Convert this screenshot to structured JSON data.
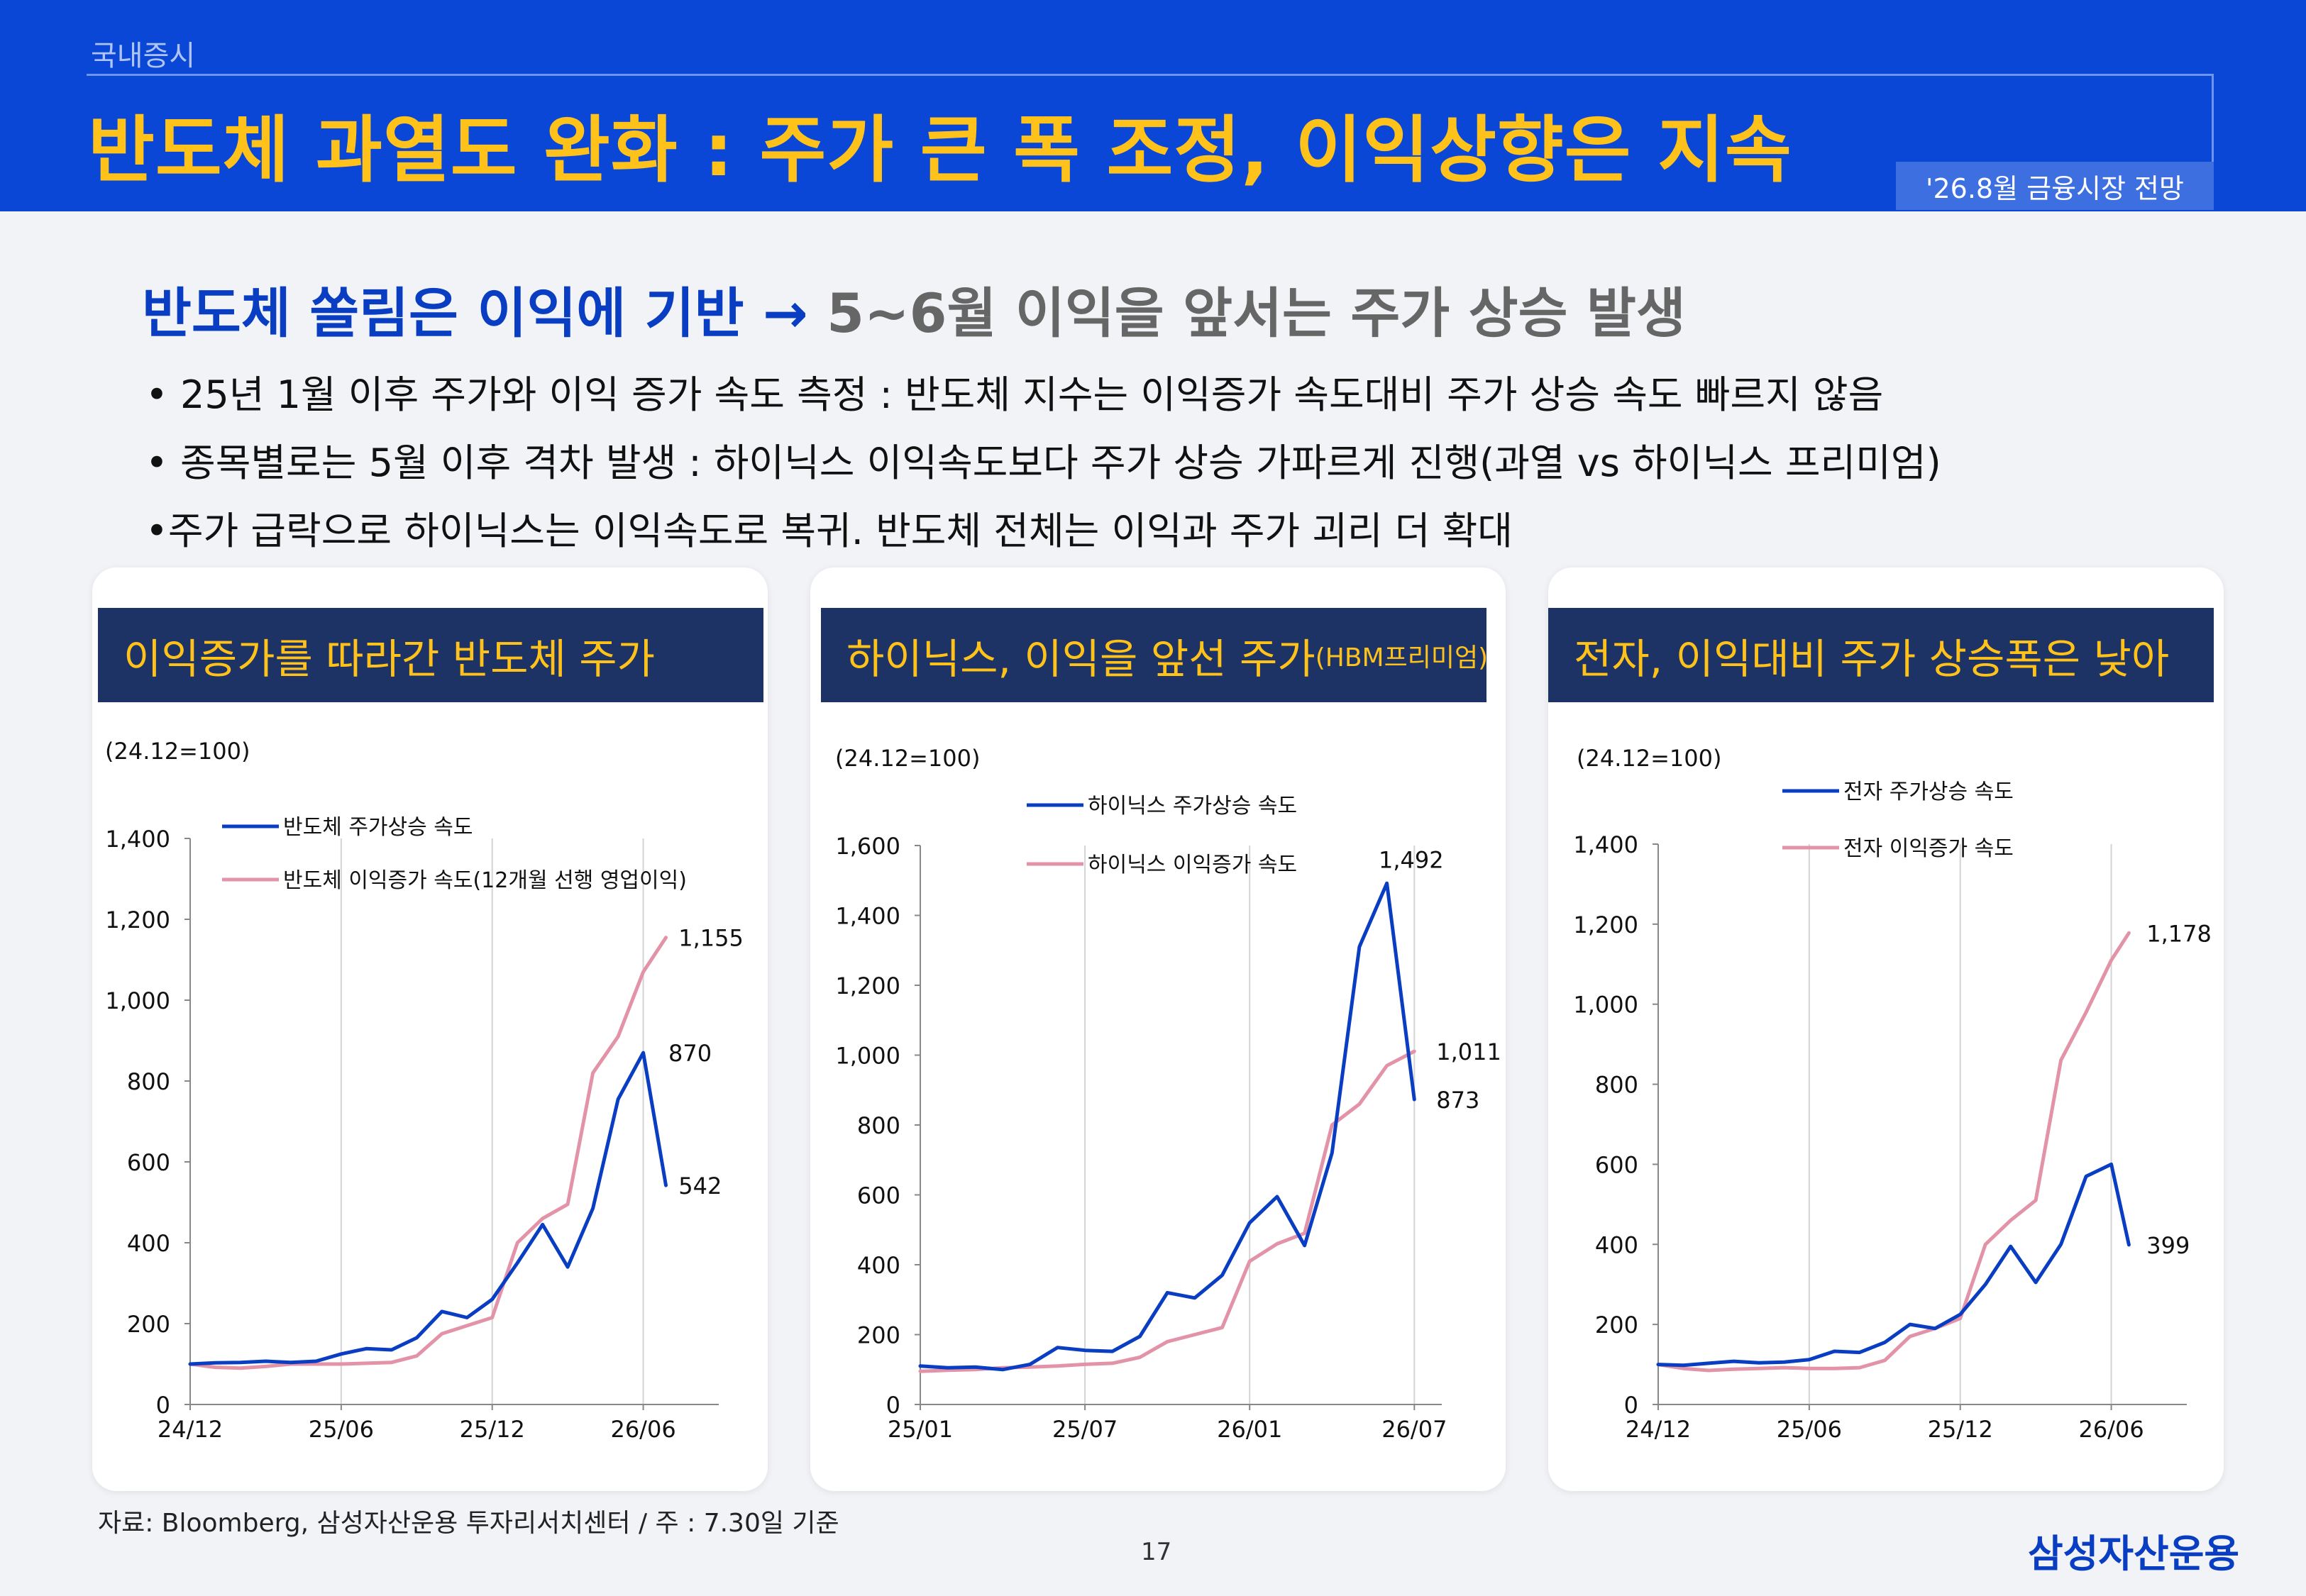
{
  "header": {
    "section": "국내증시",
    "title": "반도체 과열도 완화 : 주가 큰 폭 조정, 이익상향은 지속",
    "date_badge": "'26.8월 금융시장 전망"
  },
  "subheadline": {
    "part1": "반도체 쏠림은 이익에 기반 →",
    "part2": "5~6월 이익을 앞서는 주가 상승 발생"
  },
  "bullets": [
    "• 25년 1월 이후 주가와 이익 증가 속도 측정 : 반도체 지수는 이익증가 속도대비 주가 상승 속도 빠르지 않음",
    "• 종목별로는 5월 이후 격차 발생 : 하이닉스 이익속도보다 주가 상승 가파르게 진행(과열 vs 하이닉스 프리미엄)",
    "•주가 급락으로 하이닉스는 이익속도로 복귀. 반도체 전체는 이익과 주가 괴리 더 확대"
  ],
  "colors": {
    "blue": "#0a3ec2",
    "pink": "#e393a8",
    "navy": "#1e3365",
    "accent": "#ffc21a",
    "header": "#0a47d6"
  },
  "charts": [
    {
      "title": "이익증가를 따라간 반도체 주가",
      "title_small": ""
    },
    {
      "title": "하이닉스, 이익을 앞선 주가",
      "title_small": "(HBM프리미엄)"
    },
    {
      "title": "전자, 이익대비 주가 상승폭은 낮아",
      "title_small": ""
    }
  ],
  "chart_data": [
    {
      "type": "line",
      "title": "이익증가를 따라간 반도체 주가",
      "unit_note": "(24.12=100)",
      "ylim": [
        0,
        1400
      ],
      "yticks": [
        0,
        200,
        400,
        600,
        800,
        1000,
        1200,
        1400
      ],
      "x_range": [
        0,
        21
      ],
      "xticks": [
        {
          "pos": 0,
          "label": "24/12"
        },
        {
          "pos": 6,
          "label": "25/06"
        },
        {
          "pos": 12,
          "label": "25/12"
        },
        {
          "pos": 18,
          "label": "26/06"
        }
      ],
      "gridlines_x": [
        6,
        12,
        18
      ],
      "legend_position": "top-left",
      "series": [
        {
          "name": "반도체 주가상승 속도",
          "color": "#0a3ec2",
          "x": [
            0,
            1,
            2,
            3,
            4,
            5,
            6,
            7,
            8,
            9,
            10,
            11,
            12,
            13,
            14,
            15,
            16,
            17,
            18,
            18.9
          ],
          "values": [
            100,
            103,
            104,
            107,
            104,
            107,
            125,
            138,
            135,
            165,
            230,
            215,
            260,
            350,
            445,
            340,
            485,
            755,
            870,
            542
          ]
        },
        {
          "name": "반도체 이익증가 속도(12개월 선행 영업이익)",
          "color": "#e393a8",
          "x": [
            0,
            1,
            2,
            3,
            4,
            5,
            6,
            7,
            8,
            9,
            10,
            11,
            12,
            13,
            14,
            15,
            16,
            17,
            18,
            18.9
          ],
          "values": [
            100,
            92,
            90,
            94,
            100,
            100,
            100,
            102,
            104,
            120,
            175,
            195,
            215,
            400,
            460,
            495,
            820,
            910,
            1070,
            1155
          ]
        }
      ],
      "data_labels": [
        {
          "text": "1,155",
          "x": 19.4,
          "y": 1155
        },
        {
          "text": "870",
          "x": 19.0,
          "y": 870
        },
        {
          "text": "542",
          "x": 19.4,
          "y": 542
        }
      ]
    },
    {
      "type": "line",
      "title": "하이닉스, 이익을 앞선 주가(HBM프리미엄)",
      "unit_note": "(24.12=100)",
      "ylim": [
        0,
        1600
      ],
      "yticks": [
        0,
        200,
        400,
        600,
        800,
        1000,
        1200,
        1400,
        1600
      ],
      "x_range": [
        0,
        19
      ],
      "xticks": [
        {
          "pos": 0,
          "label": "25/01"
        },
        {
          "pos": 6,
          "label": "25/07"
        },
        {
          "pos": 12,
          "label": "26/01"
        },
        {
          "pos": 18,
          "label": "26/07"
        }
      ],
      "gridlines_x": [
        6,
        12,
        18
      ],
      "legend_position": "top-center",
      "series": [
        {
          "name": "하이닉스 주가상승 속도",
          "color": "#0a3ec2",
          "x": [
            0,
            1,
            2,
            3,
            4,
            5,
            6,
            7,
            8,
            9,
            10,
            11,
            12,
            13,
            14,
            15,
            16,
            17,
            18
          ],
          "values": [
            110,
            105,
            107,
            100,
            115,
            163,
            155,
            152,
            195,
            320,
            305,
            370,
            520,
            595,
            455,
            720,
            1310,
            1492,
            873
          ]
        },
        {
          "name": "하이닉스 이익증가 속도",
          "color": "#e393a8",
          "x": [
            0,
            1,
            2,
            3,
            4,
            5,
            6,
            7,
            8,
            9,
            10,
            11,
            12,
            13,
            14,
            15,
            16,
            17,
            18
          ],
          "values": [
            95,
            98,
            100,
            105,
            107,
            110,
            115,
            118,
            135,
            180,
            200,
            220,
            410,
            460,
            490,
            800,
            860,
            970,
            1011
          ]
        }
      ],
      "data_labels": [
        {
          "text": "1,492",
          "x": 16.7,
          "y": 1560
        },
        {
          "text": "1,011",
          "x": 18.8,
          "y": 1011
        },
        {
          "text": "873",
          "x": 18.8,
          "y": 873
        }
      ]
    },
    {
      "type": "line",
      "title": "전자, 이익대비 주가 상승폭은 낮아",
      "unit_note": "(24.12=100)",
      "ylim": [
        0,
        1400
      ],
      "yticks": [
        0,
        200,
        400,
        600,
        800,
        1000,
        1200,
        1400
      ],
      "x_range": [
        0,
        21
      ],
      "xticks": [
        {
          "pos": 0,
          "label": "24/12"
        },
        {
          "pos": 6,
          "label": "25/06"
        },
        {
          "pos": 12,
          "label": "25/12"
        },
        {
          "pos": 18,
          "label": "26/06"
        }
      ],
      "gridlines_x": [
        6,
        12,
        18
      ],
      "legend_position": "top-center",
      "series": [
        {
          "name": "전자 주가상승 속도",
          "color": "#0a3ec2",
          "x": [
            0,
            1,
            2,
            3,
            4,
            5,
            6,
            7,
            8,
            9,
            10,
            11,
            12,
            13,
            14,
            15,
            16,
            17,
            18,
            18.7
          ],
          "values": [
            100,
            98,
            103,
            108,
            104,
            106,
            112,
            133,
            130,
            155,
            200,
            190,
            225,
            300,
            395,
            305,
            400,
            570,
            600,
            399
          ]
        },
        {
          "name": "전자 이익증가 속도",
          "color": "#e393a8",
          "x": [
            0,
            1,
            2,
            3,
            4,
            5,
            6,
            7,
            8,
            9,
            10,
            11,
            12,
            13,
            14,
            15,
            16,
            17,
            18,
            18.7
          ],
          "values": [
            100,
            90,
            85,
            88,
            90,
            92,
            90,
            90,
            92,
            110,
            170,
            190,
            215,
            400,
            460,
            510,
            860,
            980,
            1110,
            1178
          ]
        }
      ],
      "data_labels": [
        {
          "text": "1,178",
          "x": 19.4,
          "y": 1178
        },
        {
          "text": "399",
          "x": 19.4,
          "y": 399
        }
      ]
    }
  ],
  "footer": {
    "source": "자료: Bloomberg, 삼성자산운용 투자리서치센터 / 주 : 7.30일 기준",
    "page": "17",
    "logo": "삼성자산운용"
  }
}
